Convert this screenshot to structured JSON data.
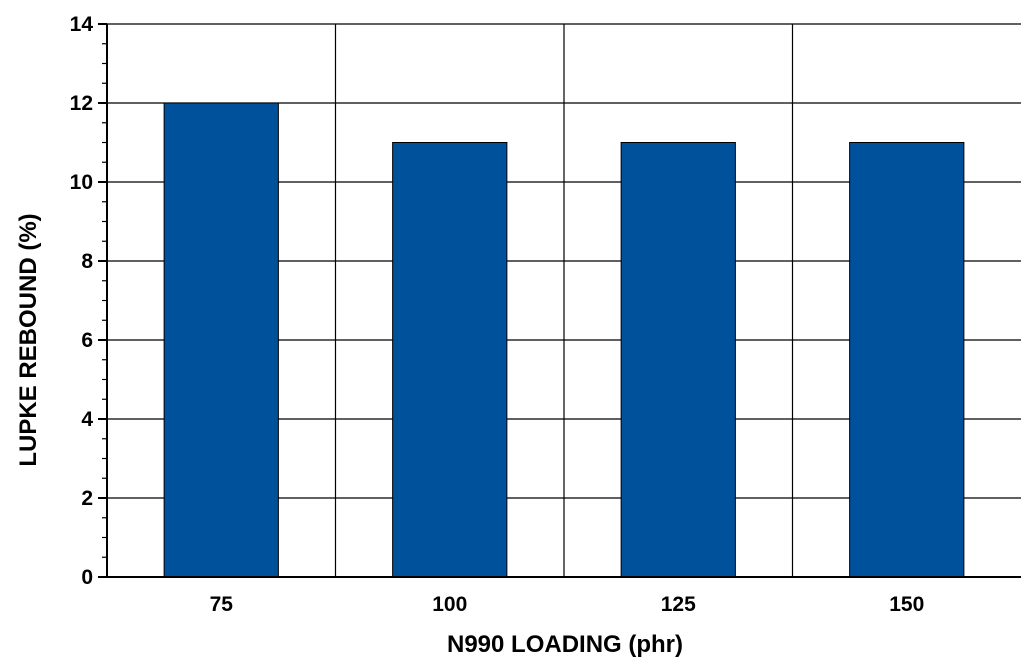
{
  "chart_data": {
    "type": "bar",
    "title": "",
    "xlabel": "N990 LOADING (phr)",
    "ylabel": "LUPKE REBOUND (%)",
    "categories": [
      "75",
      "100",
      "125",
      "150"
    ],
    "series": [
      {
        "values": [
          12,
          11,
          11,
          11
        ]
      }
    ],
    "ylim": [
      0,
      14
    ],
    "yticks": [
      0,
      2,
      4,
      6,
      8,
      10,
      12,
      14
    ],
    "grid": true,
    "legend": "none",
    "colors": {
      "bar": "#00519C",
      "bar_edge": "#000000",
      "grid": "#000000"
    }
  }
}
